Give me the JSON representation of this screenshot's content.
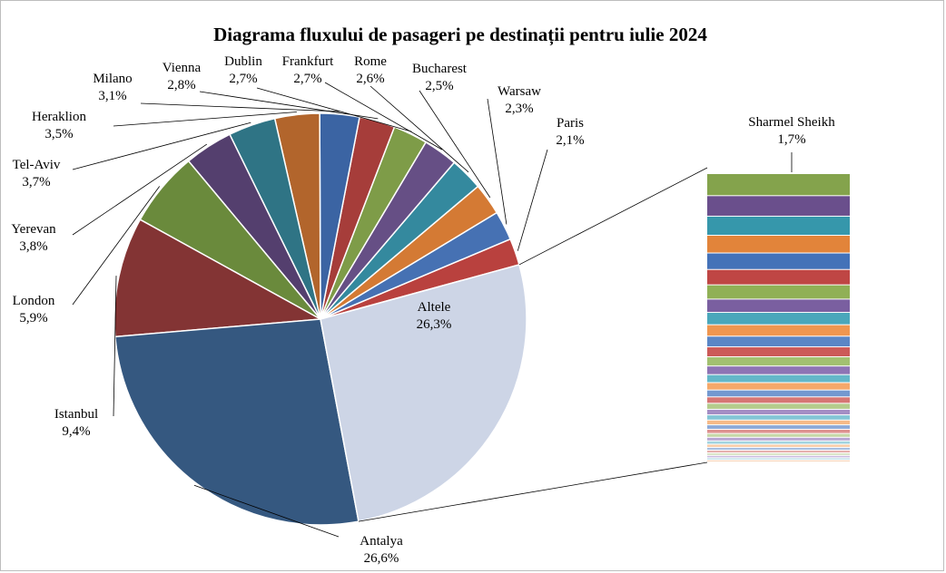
{
  "chart_data": {
    "type": "pie",
    "subtype": "bar-of-pie",
    "title": "Diagrama fluxului de pasageri pe destinații pentru iulie 2024",
    "slices": [
      {
        "label": "Antalya",
        "value_text": "26,6%",
        "value": 26.6,
        "color": "#355880"
      },
      {
        "label": "Istanbul",
        "value_text": "9,4%",
        "value": 9.4,
        "color": "#833434"
      },
      {
        "label": "London",
        "value_text": "5,9%",
        "value": 5.9,
        "color": "#6a8a3c"
      },
      {
        "label": "Yerevan",
        "value_text": "3,8%",
        "value": 3.8,
        "color": "#543f6e"
      },
      {
        "label": "Tel-Aviv",
        "value_text": "3,7%",
        "value": 3.7,
        "color": "#2f7485"
      },
      {
        "label": "Heraklion",
        "value_text": "3,5%",
        "value": 3.5,
        "color": "#b2652c"
      },
      {
        "label": "Milano",
        "value_text": "3,1%",
        "value": 3.1,
        "color": "#3b64a3"
      },
      {
        "label": "Vienna",
        "value_text": "2,8%",
        "value": 2.8,
        "color": "#a63d3a"
      },
      {
        "label": "Dublin",
        "value_text": "2,7%",
        "value": 2.7,
        "color": "#7e9c48"
      },
      {
        "label": "Frankfurt",
        "value_text": "2,7%",
        "value": 2.7,
        "color": "#664f85"
      },
      {
        "label": "Rome",
        "value_text": "2,6%",
        "value": 2.6,
        "color": "#34899e"
      },
      {
        "label": "Bucharest",
        "value_text": "2,5%",
        "value": 2.5,
        "color": "#d47a34"
      },
      {
        "label": "Warsaw",
        "value_text": "2,3%",
        "value": 2.3,
        "color": "#4671b3"
      },
      {
        "label": "Paris",
        "value_text": "2,1%",
        "value": 2.1,
        "color": "#b9413e"
      },
      {
        "label": "Altele",
        "value_text": "26,3%",
        "value": 26.3,
        "color": "#cdd5e6"
      }
    ],
    "secondary_bar": {
      "first_label": "Sharmel Sheikh",
      "first_value_text": "1,7%",
      "first_value": 1.7,
      "segment_colors": [
        "#84a34c",
        "#6a4f8c",
        "#3697ab",
        "#e2843a",
        "#4472b8",
        "#bf4644",
        "#90b056",
        "#7a5fa0",
        "#4aa7bb",
        "#ef9650",
        "#5a86c6",
        "#cc5a58",
        "#a2c070",
        "#8e74b4",
        "#64b7c9",
        "#f5a86a",
        "#7398d0",
        "#d67674",
        "#b4cc8c",
        "#a48ec4",
        "#84c6d6",
        "#f7ba88",
        "#8eaad8",
        "#de9290",
        "#c6d8a8",
        "#b8a6d2",
        "#a2d4e0",
        "#f9cca6",
        "#a8bee0",
        "#e6acaa",
        "#d6e2c2",
        "#cabce0",
        "#bfe0ea",
        "#f8d6bc"
      ]
    }
  }
}
